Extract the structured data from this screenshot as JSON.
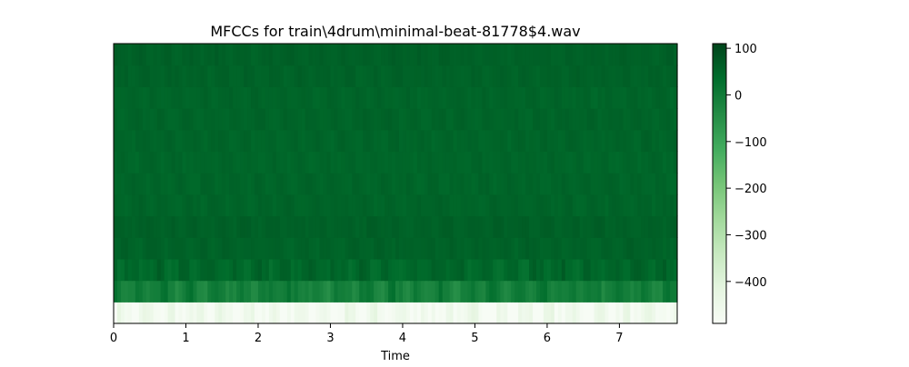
{
  "chart_data": {
    "type": "heatmap",
    "title": "MFCCs for train\\4drum\\minimal-beat-81778$4.wav",
    "xlabel": "Time",
    "ylabel": "",
    "xlim": [
      0,
      7.8
    ],
    "x_ticks": [
      0,
      1,
      2,
      3,
      4,
      5,
      6,
      7
    ],
    "y_ticks_shown": false,
    "n_coefficients": 13,
    "n_frames": 156,
    "colormap": "Greens",
    "colorbar": {
      "range": [
        -490,
        110
      ],
      "ticks": [
        100,
        0,
        -100,
        -200,
        -300,
        -400
      ],
      "tick_labels": [
        "100",
        "0",
        "−100",
        "−200",
        "−300",
        "−400"
      ]
    },
    "row_mean_values": [
      -470,
      -10,
      45,
      55,
      58,
      52,
      50,
      48,
      50,
      52,
      50,
      55,
      58
    ],
    "row_variation": [
      60,
      40,
      25,
      12,
      10,
      10,
      10,
      10,
      10,
      10,
      10,
      10,
      10
    ]
  }
}
